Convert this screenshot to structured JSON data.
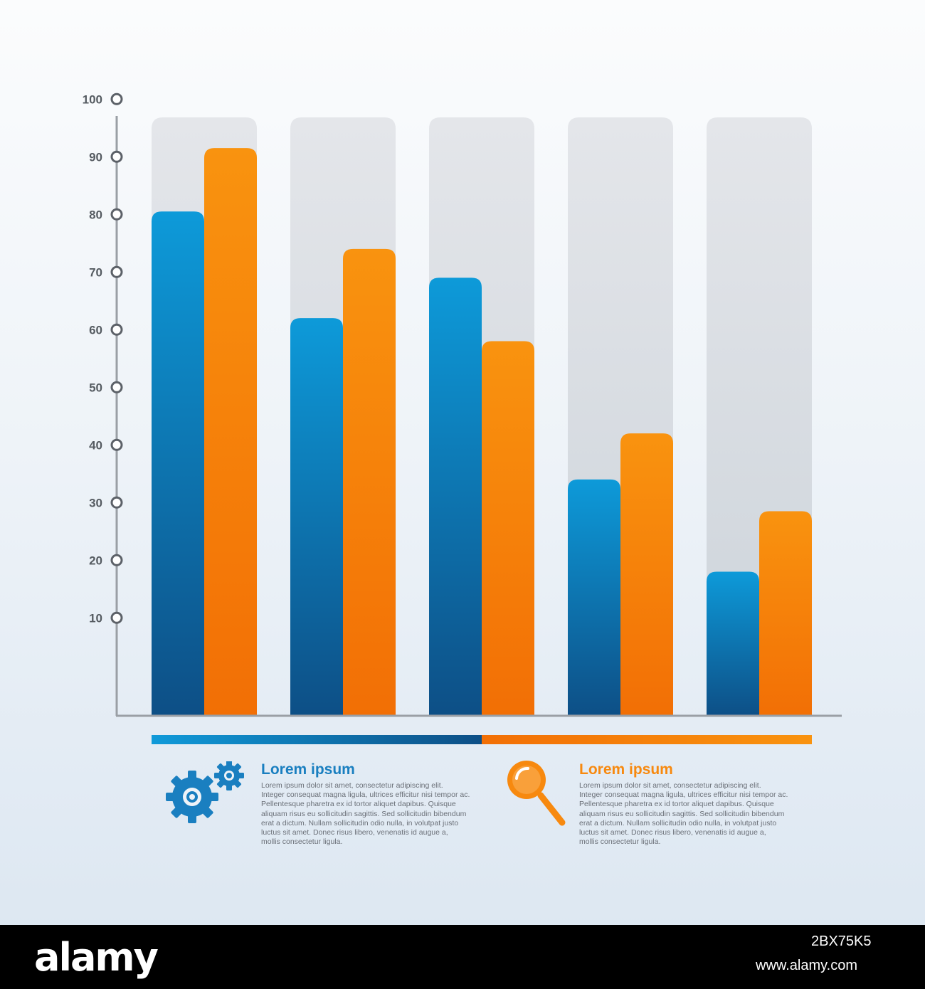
{
  "chart_data": {
    "type": "bar",
    "categories": [
      "",
      "",
      "",
      "",
      ""
    ],
    "series": [
      {
        "color": "#1a8fd0",
        "values": [
          80.5,
          62,
          69,
          34,
          18
        ]
      },
      {
        "color": "#f7890f",
        "values": [
          91.5,
          74,
          58,
          42,
          28.5
        ]
      }
    ],
    "yticks": [
      10,
      20,
      30,
      40,
      50,
      60,
      70,
      80,
      90,
      100
    ],
    "ylim": [
      -7,
      104
    ],
    "title": "",
    "xlabel": "",
    "ylabel": ""
  },
  "legend": {
    "blue": {
      "title": "Lorem ipsum",
      "text": "Lorem ipsum dolor sit amet, consectetur adipiscing elit.\nInteger consequat magna ligula, ultrices efficitur nisi tempor ac.\nPellentesque pharetra ex id tortor aliquet dapibus. Quisque\naliquam risus eu sollicitudin sagittis. Sed sollicitudin bibendum\nerat a dictum. Nullam sollicitudin odio nulla, in volutpat justo\nluctus sit amet. Donec risus libero, venenatis id augue a,\nmollis consectetur ligula.",
      "icon": "gears-icon",
      "color": "#1a7fc0"
    },
    "orange": {
      "title": "Lorem ipsum",
      "text": "Lorem ipsum dolor sit amet, consectetur adipiscing elit.\nInteger consequat magna ligula, ultrices efficitur nisi tempor ac.\nPellentesque pharetra ex id tortor aliquet dapibus. Quisque\naliquam risus eu sollicitudin sagittis. Sed sollicitudin bibendum\nerat a dictum. Nullam sollicitudin odio nulla, in volutpat justo\nluctus sit amet. Donec risus libero, venenatis id augue a,\nmollis consectetur ligula.",
      "icon": "magnifier-icon",
      "color": "#f7890f"
    }
  },
  "footer": {
    "logo": "alamy",
    "image_id": "2BX75K5",
    "url": "www.alamy.com"
  }
}
